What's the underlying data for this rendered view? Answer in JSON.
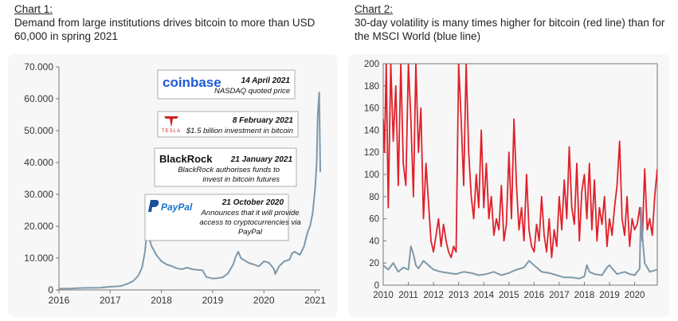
{
  "chart1": {
    "label": "Chart 1:",
    "title": "Demand from large institutions drives bitcoin to more than USD 60,000 in spring 2021"
  },
  "chart2": {
    "label": "Chart 2:",
    "title": "30-day volatility is many times higher for bitcoin (red line) than for the MSCI World (blue line)"
  },
  "annotations": [
    {
      "logo": "coinbase",
      "date": "14 April 2021",
      "text": [
        "NASDAQ quoted price"
      ]
    },
    {
      "logo": "tesla",
      "logo_text": "TESLA",
      "date": "8 February 2021",
      "text": [
        "$1.5 billion investment in bitcoin"
      ]
    },
    {
      "logo": "BlackRock",
      "date": "21 January 2021",
      "text": [
        "BlackRock authorises funds to",
        "invest in bitcoin futures"
      ]
    },
    {
      "logo": "PayPal",
      "date": "21 October 2020",
      "text": [
        "Announces that it will provide",
        "access to cryptocurrencies via",
        "PayPal"
      ]
    }
  ],
  "colors": {
    "bitcoin_price_line": "#7f99ab",
    "bitcoin_volatility_line": "#e0202a",
    "msci_world_line": "#7f99ab",
    "panel_background": "#f7f7f7"
  },
  "chart_data": [
    {
      "type": "line",
      "title": "Demand from large institutions drives bitcoin to more than USD 60,000 in spring 2021",
      "xlabel": "",
      "ylabel": "",
      "xlim": [
        2016.0,
        2021.1
      ],
      "ylim": [
        0,
        70000
      ],
      "x_ticks": [
        "2016",
        "2017",
        "2018",
        "2019",
        "2020",
        "2021"
      ],
      "y_ticks": [
        "0",
        "10.000",
        "20.000",
        "30.000",
        "40.000",
        "50.000",
        "60.000",
        "70.000"
      ],
      "grid": false,
      "series": [
        {
          "x": [
            2016.0,
            2016.2,
            2016.4,
            2016.6,
            2016.8,
            2017.0,
            2017.2,
            2017.35,
            2017.45,
            2017.55,
            2017.62,
            2017.68,
            2017.72,
            2017.8,
            2017.9,
            2018.0,
            2018.1,
            2018.2,
            2018.3,
            2018.4,
            2018.5,
            2018.6,
            2018.7,
            2018.8,
            2018.88,
            2018.95,
            2019.0,
            2019.1,
            2019.2,
            2019.3,
            2019.4,
            2019.45,
            2019.5,
            2019.55,
            2019.6,
            2019.7,
            2019.8,
            2019.9,
            2020.0,
            2020.1,
            2020.2,
            2020.22,
            2020.3,
            2020.4,
            2020.5,
            2020.55,
            2020.6,
            2020.7,
            2020.78,
            2020.85,
            2020.9,
            2020.95,
            2021.0,
            2021.03,
            2021.05,
            2021.08,
            2021.1
          ],
          "y": [
            400,
            450,
            600,
            650,
            700,
            1000,
            1200,
            2000,
            2800,
            4500,
            7000,
            12000,
            19000,
            14000,
            11000,
            9000,
            8000,
            7500,
            6800,
            6500,
            7000,
            6500,
            6300,
            6200,
            4000,
            3800,
            3600,
            3700,
            4000,
            5200,
            8000,
            10500,
            12000,
            10000,
            9500,
            8500,
            8000,
            7400,
            9000,
            8500,
            6500,
            5000,
            7500,
            9000,
            9500,
            11500,
            12000,
            11000,
            13500,
            18000,
            20000,
            24000,
            32000,
            40000,
            55000,
            62000,
            37000
          ]
        }
      ]
    },
    {
      "type": "line",
      "title": "30-day volatility is many times higher for bitcoin (red line) than for the MSCI World (blue line)",
      "xlabel": "",
      "ylabel": "",
      "xlim": [
        2010,
        2020.9
      ],
      "ylim": [
        0,
        200
      ],
      "x_ticks": [
        "2010",
        "2011",
        "2012",
        "2013",
        "2014",
        "2015",
        "2016",
        "2017",
        "2018",
        "2019",
        "2020"
      ],
      "y_ticks": [
        "0",
        "20",
        "40",
        "60",
        "80",
        "100",
        "120",
        "140",
        "160",
        "180",
        "200"
      ],
      "grid": false,
      "series": [
        {
          "x": [
            2010.0,
            2010.05,
            2010.12,
            2010.2,
            2010.3,
            2010.4,
            2010.5,
            2010.6,
            2010.7,
            2010.8,
            2010.9,
            2011.0,
            2011.1,
            2011.2,
            2011.3,
            2011.4,
            2011.5,
            2011.6,
            2011.7,
            2011.8,
            2011.9,
            2012.0,
            2012.1,
            2012.2,
            2012.3,
            2012.4,
            2012.5,
            2012.6,
            2012.7,
            2012.8,
            2012.9,
            2013.0,
            2013.1,
            2013.2,
            2013.3,
            2013.4,
            2013.5,
            2013.6,
            2013.7,
            2013.8,
            2013.9,
            2014.0,
            2014.1,
            2014.2,
            2014.3,
            2014.4,
            2014.5,
            2014.6,
            2014.7,
            2014.8,
            2014.9,
            2015.0,
            2015.1,
            2015.2,
            2015.3,
            2015.4,
            2015.5,
            2015.6,
            2015.7,
            2015.8,
            2015.9,
            2016.0,
            2016.1,
            2016.2,
            2016.3,
            2016.4,
            2016.5,
            2016.6,
            2016.7,
            2016.8,
            2016.9,
            2017.0,
            2017.1,
            2017.2,
            2017.3,
            2017.4,
            2017.5,
            2017.6,
            2017.7,
            2017.8,
            2017.9,
            2018.0,
            2018.1,
            2018.2,
            2018.3,
            2018.4,
            2018.5,
            2018.6,
            2018.7,
            2018.8,
            2018.9,
            2019.0,
            2019.1,
            2019.2,
            2019.3,
            2019.4,
            2019.5,
            2019.6,
            2019.7,
            2019.8,
            2019.9,
            2020.0,
            2020.1,
            2020.2,
            2020.3,
            2020.4,
            2020.5,
            2020.6,
            2020.7,
            2020.8,
            2020.9
          ],
          "y": [
            150,
            120,
            200,
            70,
            200,
            130,
            180,
            90,
            200,
            110,
            90,
            200,
            150,
            80,
            200,
            120,
            160,
            60,
            110,
            75,
            40,
            30,
            45,
            60,
            35,
            55,
            40,
            30,
            25,
            35,
            30,
            200,
            150,
            90,
            200,
            120,
            80,
            60,
            100,
            70,
            140,
            70,
            110,
            60,
            80,
            45,
            60,
            50,
            90,
            40,
            55,
            120,
            60,
            150,
            90,
            50,
            70,
            40,
            100,
            50,
            35,
            30,
            55,
            40,
            80,
            45,
            30,
            60,
            25,
            50,
            35,
            80,
            50,
            95,
            60,
            125,
            70,
            55,
            110,
            40,
            85,
            100,
            60,
            110,
            50,
            95,
            40,
            70,
            55,
            80,
            35,
            60,
            45,
            70,
            90,
            130,
            60,
            45,
            80,
            35,
            60,
            50,
            55,
            70,
            40,
            105,
            50,
            60,
            45,
            80,
            105
          ]
        },
        {
          "x": [
            2010.0,
            2010.2,
            2010.4,
            2010.6,
            2010.8,
            2011.0,
            2011.1,
            2011.2,
            2011.3,
            2011.4,
            2011.6,
            2011.8,
            2012.0,
            2012.3,
            2012.6,
            2012.9,
            2013.2,
            2013.5,
            2013.8,
            2014.1,
            2014.4,
            2014.7,
            2015.0,
            2015.3,
            2015.6,
            2015.8,
            2016.0,
            2016.3,
            2016.6,
            2016.9,
            2017.2,
            2017.5,
            2017.8,
            2018.0,
            2018.1,
            2018.2,
            2018.4,
            2018.7,
            2018.9,
            2019.0,
            2019.3,
            2019.6,
            2019.8,
            2020.0,
            2020.2,
            2020.25,
            2020.3,
            2020.4,
            2020.6,
            2020.9
          ],
          "y": [
            18,
            14,
            20,
            12,
            16,
            14,
            35,
            28,
            18,
            15,
            22,
            18,
            14,
            12,
            11,
            10,
            12,
            11,
            9,
            10,
            12,
            9,
            11,
            14,
            16,
            22,
            18,
            12,
            11,
            9,
            7,
            7,
            6,
            8,
            18,
            12,
            10,
            9,
            16,
            18,
            10,
            12,
            10,
            9,
            15,
            70,
            45,
            20,
            12,
            14
          ]
        }
      ]
    }
  ]
}
